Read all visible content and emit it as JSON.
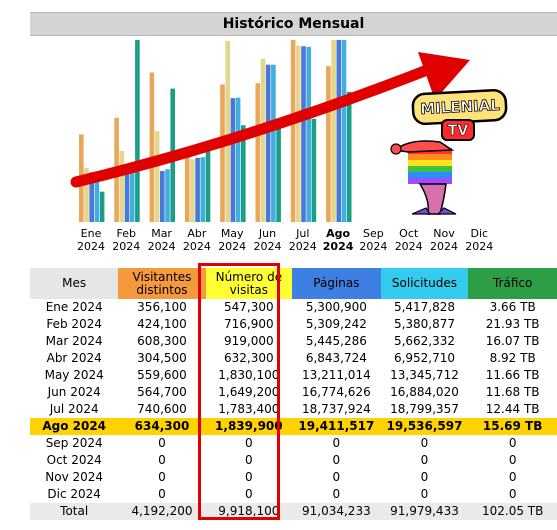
{
  "title": "Histórico Mensual",
  "logo": {
    "line1": "MILENIAL",
    "line2": "TV"
  },
  "colors": {
    "header_mes": "#e6e6e6",
    "header_visitantes": "#f59a3c",
    "header_visitas": "#ffff33",
    "header_paginas": "#3d7fe2",
    "header_solicitudes": "#33ccee",
    "header_trafico": "#2e9e46",
    "highlight_row": "#ffd200",
    "red_accent": "#e00000",
    "bar_visitantes": "#e8a75a",
    "bar_visitas": "#e4d68a",
    "bar_paginas": "#4a78d8",
    "bar_solicitudes": "#42aee0",
    "bar_trafico": "#1a9e86"
  },
  "chart_data": {
    "type": "bar",
    "categories": [
      "Ene 2024",
      "Feb 2024",
      "Mar 2024",
      "Abr 2024",
      "May 2024",
      "Jun 2024",
      "Jul 2024",
      "Ago 2024",
      "Sep 2024",
      "Oct 2024",
      "Nov 2024",
      "Dic 2024"
    ],
    "category_labels": [
      {
        "m": "Ene",
        "y": "2024"
      },
      {
        "m": "Feb",
        "y": "2024"
      },
      {
        "m": "Mar",
        "y": "2024"
      },
      {
        "m": "Abr",
        "y": "2024"
      },
      {
        "m": "May",
        "y": "2024"
      },
      {
        "m": "Jun",
        "y": "2024"
      },
      {
        "m": "Jul",
        "y": "2024"
      },
      {
        "m": "Ago",
        "y": "2024"
      },
      {
        "m": "Sep",
        "y": "2024"
      },
      {
        "m": "Oct",
        "y": "2024"
      },
      {
        "m": "Nov",
        "y": "2024"
      },
      {
        "m": "Dic",
        "y": "2024"
      }
    ],
    "bold_category_index": 7,
    "series": [
      {
        "values": [
          356100,
          424100,
          608300,
          304500,
          559600,
          564700,
          740600,
          634300,
          0,
          0,
          0,
          0
        ]
      },
      {
        "values": [
          547300,
          716900,
          919000,
          632300,
          1830100,
          1649200,
          1783400,
          1839900,
          0,
          0,
          0,
          0
        ]
      },
      {
        "values": [
          5300900,
          5309242,
          5445286,
          6843724,
          13211014,
          16774626,
          18737924,
          19411517,
          0,
          0,
          0,
          0
        ]
      },
      {
        "values": [
          5417828,
          5380877,
          5662332,
          6952710,
          13345712,
          16884020,
          18799357,
          19536597,
          0,
          0,
          0,
          0
        ]
      },
      {
        "values": [
          3.66,
          21.93,
          16.07,
          8.92,
          11.66,
          11.68,
          12.44,
          15.69,
          0,
          0,
          0,
          0
        ]
      }
    ],
    "trend_arrow": true
  },
  "table": {
    "headers": [
      "Mes",
      "Visitantes distintos",
      "Número de visitas",
      "Páginas",
      "Solicitudes",
      "Tráfico"
    ],
    "rows": [
      [
        "Ene 2024",
        "356,100",
        "547,300",
        "5,300,900",
        "5,417,828",
        "3.66 TB"
      ],
      [
        "Feb 2024",
        "424,100",
        "716,900",
        "5,309,242",
        "5,380,877",
        "21.93 TB"
      ],
      [
        "Mar 2024",
        "608,300",
        "919,000",
        "5,445,286",
        "5,662,332",
        "16.07 TB"
      ],
      [
        "Abr 2024",
        "304,500",
        "632,300",
        "6,843,724",
        "6,952,710",
        "8.92 TB"
      ],
      [
        "May 2024",
        "559,600",
        "1,830,100",
        "13,211,014",
        "13,345,712",
        "11.66 TB"
      ],
      [
        "Jun 2024",
        "564,700",
        "1,649,200",
        "16,774,626",
        "16,884,020",
        "11.68 TB"
      ],
      [
        "Jul 2024",
        "740,600",
        "1,783,400",
        "18,737,924",
        "18,799,357",
        "12.44 TB"
      ],
      [
        "Ago 2024",
        "634,300",
        "1,839,900",
        "19,411,517",
        "19,536,597",
        "15.69 TB"
      ],
      [
        "Sep 2024",
        "0",
        "0",
        "0",
        "0",
        "0"
      ],
      [
        "Oct 2024",
        "0",
        "0",
        "0",
        "0",
        "0"
      ],
      [
        "Nov 2024",
        "0",
        "0",
        "0",
        "0",
        "0"
      ],
      [
        "Dic 2024",
        "0",
        "0",
        "0",
        "0",
        "0"
      ]
    ],
    "highlight_row_index": 7,
    "total": [
      "Total",
      "4,192,200",
      "9,918,100",
      "91,034,233",
      "91,979,433",
      "102.05 TB"
    ]
  }
}
